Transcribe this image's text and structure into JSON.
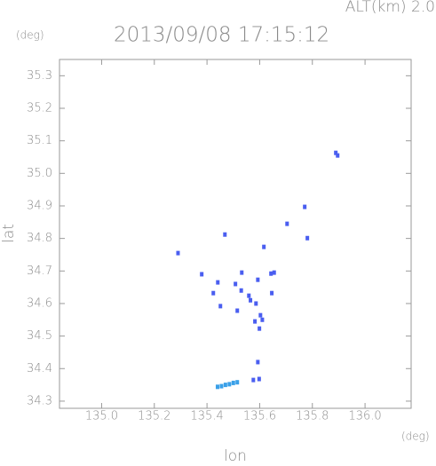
{
  "chart_data": {
    "type": "scatter",
    "title": "2013/09/08 17:15:12",
    "subtitle": "ALT(km) 2.0",
    "y_unit": "(deg)",
    "x_unit": "(deg)",
    "xlabel": "lon",
    "ylabel": "lat",
    "xlim": [
      134.84,
      136.175
    ],
    "ylim": [
      34.278,
      35.35
    ],
    "xticks": [
      {
        "value": 135,
        "label": "135.0"
      },
      135.2,
      135.4,
      135.6,
      135.8,
      {
        "value": 136,
        "label": "136.0"
      }
    ],
    "yticks": [
      34.3,
      34.4,
      34.5,
      34.6,
      34.7,
      34.8,
      34.9,
      {
        "value": 35,
        "label": "35.0"
      },
      35.1,
      35.2,
      35.3
    ],
    "series": [
      {
        "color": "#4a5ef0",
        "x": [
          135.889,
          135.896,
          135.29,
          135.38,
          135.424,
          135.441,
          135.508,
          135.532,
          135.515,
          135.559,
          135.593,
          135.586,
          135.603,
          135.599,
          135.582,
          135.643,
          135.646,
          135.593,
          135.576,
          135.598,
          135.468,
          135.616,
          135.704,
          135.771,
          135.781,
          135.451,
          135.61,
          135.655,
          135.53,
          135.565
        ],
        "values": [
          35.063,
          35.055,
          34.755,
          34.69,
          34.632,
          34.665,
          34.66,
          34.695,
          34.578,
          34.624,
          34.673,
          34.6,
          34.564,
          34.523,
          34.545,
          34.692,
          34.632,
          34.42,
          34.365,
          34.368,
          34.812,
          34.774,
          34.845,
          34.897,
          34.801,
          34.592,
          34.55,
          34.695,
          34.64,
          34.61
        ]
      },
      {
        "color": "#3aa0e8",
        "x": [
          135.44,
          135.455,
          135.47,
          135.485,
          135.5,
          135.515
        ],
        "values": [
          34.344,
          34.346,
          34.35,
          34.352,
          34.356,
          34.358
        ]
      }
    ]
  }
}
